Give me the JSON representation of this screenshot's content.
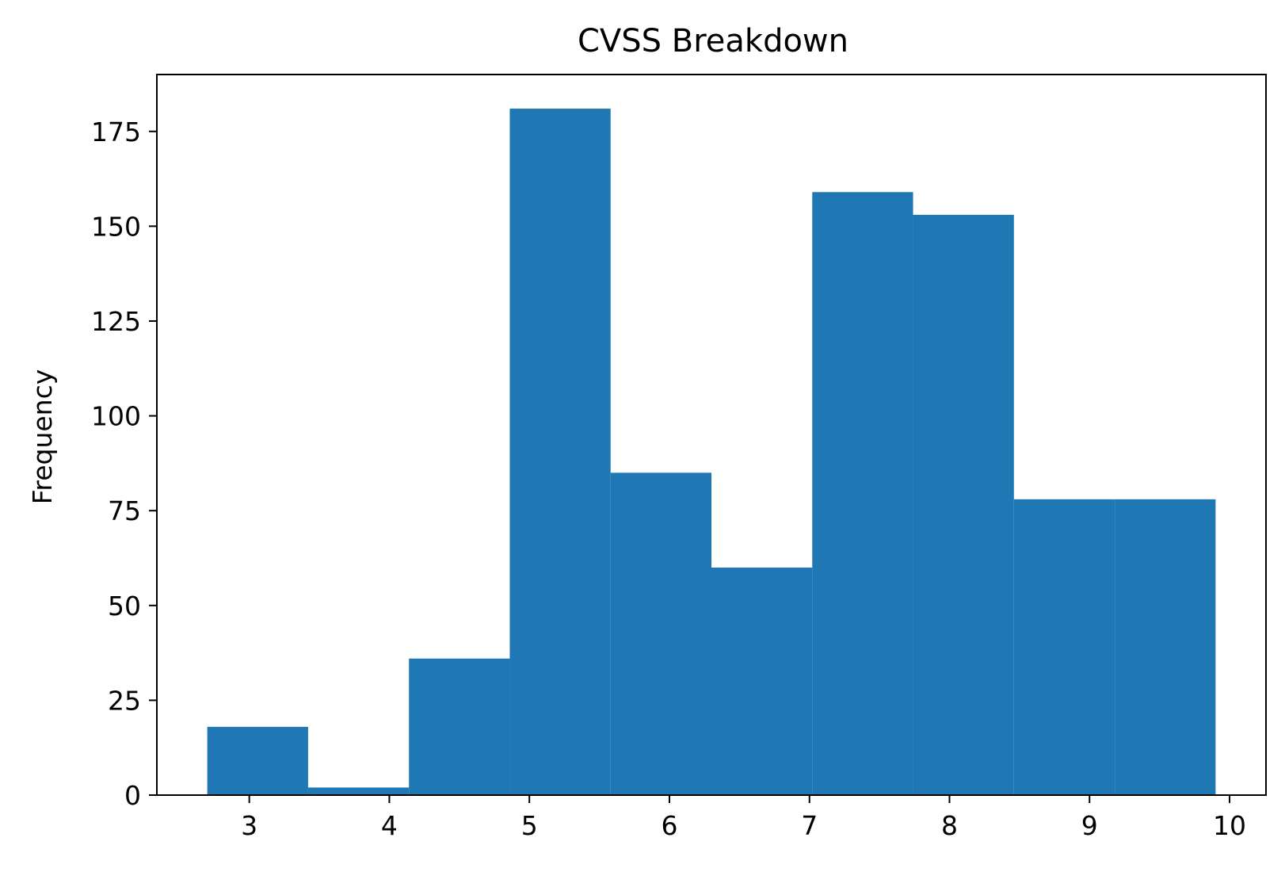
{
  "chart_data": {
    "type": "histogram",
    "title": "CVSS Breakdown",
    "xlabel": "",
    "ylabel": "Frequency",
    "xlim": [
      2.34,
      10.26
    ],
    "ylim": [
      0,
      190
    ],
    "x_ticks": [
      3,
      4,
      5,
      6,
      7,
      8,
      9,
      10
    ],
    "y_ticks": [
      0,
      25,
      50,
      75,
      100,
      125,
      150,
      175
    ],
    "grid": false,
    "bar_color": "#1f77b4",
    "bins": [
      {
        "start": 2.7,
        "end": 3.42,
        "count": 18
      },
      {
        "start": 3.42,
        "end": 4.14,
        "count": 2
      },
      {
        "start": 4.14,
        "end": 4.86,
        "count": 36
      },
      {
        "start": 4.86,
        "end": 5.58,
        "count": 181
      },
      {
        "start": 5.58,
        "end": 6.3,
        "count": 85
      },
      {
        "start": 6.3,
        "end": 7.02,
        "count": 60
      },
      {
        "start": 7.02,
        "end": 7.74,
        "count": 159
      },
      {
        "start": 7.74,
        "end": 8.46,
        "count": 153
      },
      {
        "start": 8.46,
        "end": 9.18,
        "count": 78
      },
      {
        "start": 9.18,
        "end": 9.9,
        "count": 78
      }
    ]
  }
}
